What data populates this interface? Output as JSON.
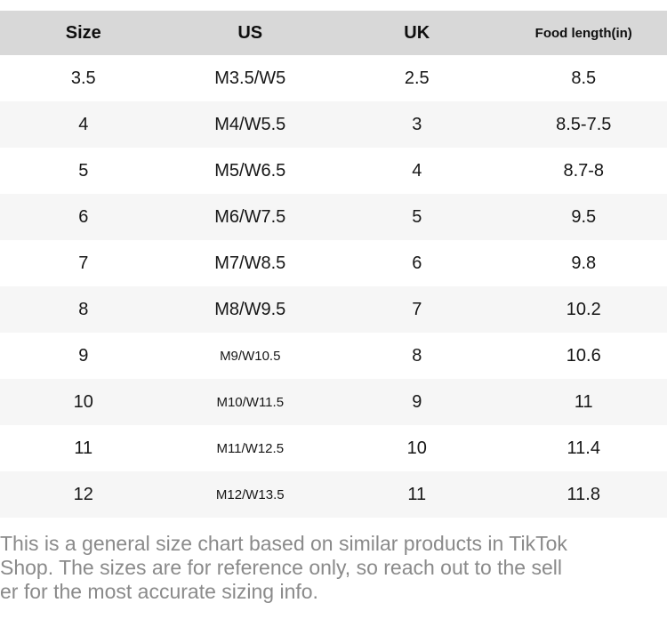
{
  "table": {
    "headers": [
      "Size",
      "US",
      "UK",
      "Food length(in)"
    ],
    "rows": [
      [
        "3.5",
        "M3.5/W5",
        "2.5",
        "8.5"
      ],
      [
        "4",
        "M4/W5.5",
        "3",
        "8.5-7.5"
      ],
      [
        "5",
        "M5/W6.5",
        "4",
        "8.7-8"
      ],
      [
        "6",
        "M6/W7.5",
        "5",
        "9.5"
      ],
      [
        "7",
        "M7/W8.5",
        "6",
        "9.8"
      ],
      [
        "8",
        "M8/W9.5",
        "7",
        "10.2"
      ],
      [
        "9",
        "M9/W10.5",
        "8",
        "10.6"
      ],
      [
        "10",
        "M10/W11.5",
        "9",
        "11"
      ],
      [
        "11",
        "M11/W12.5",
        "10",
        "11.4"
      ],
      [
        "12",
        "M12/W13.5",
        "11",
        "11.8"
      ]
    ],
    "small_font_us_rows_from_index": 6
  },
  "footer": {
    "lines": [
      "This is a general size chart based on similar products in TikTok",
      "Shop. The sizes are for reference only, so reach out to the sell",
      "er for the most accurate sizing info."
    ]
  },
  "colors": {
    "header_bg": "#d8d8d8",
    "row_alt_bg": "#f6f6f6",
    "cell_text": "#161616",
    "footer_text": "#8a8a8a"
  }
}
